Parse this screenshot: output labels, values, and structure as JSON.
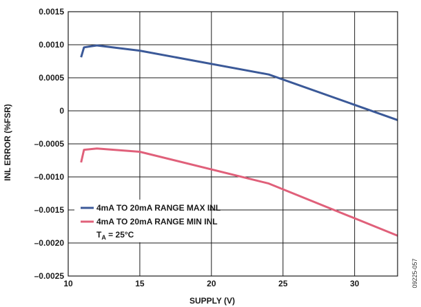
{
  "chart_data": {
    "type": "line",
    "xlabel": "SUPPLY (V)",
    "ylabel": "INL ERROR (%FSR)",
    "xlim": [
      10,
      33
    ],
    "ylim": [
      -0.0025,
      0.0015
    ],
    "x_ticks": [
      10,
      15,
      20,
      25,
      30
    ],
    "x_tick_labels": [
      "10",
      "15",
      "20",
      "25",
      "30"
    ],
    "y_ticks": [
      0.0015,
      0.001,
      0.0005,
      0,
      -0.0005,
      -0.001,
      -0.0015,
      -0.002,
      -0.0025
    ],
    "y_tick_labels": [
      "0.0015",
      "0.0010",
      "0.0005",
      "0",
      "–0.0005",
      "–0.0010",
      "–0.0015",
      "–0.0020",
      "–0.0025"
    ],
    "grid": true,
    "legend_position": "bottom-left",
    "series": [
      {
        "name": "4mA TO 20mA RANGE MAX INL",
        "color": "#3b5998",
        "x": [
          10.9,
          11.1,
          12,
          15,
          24,
          33
        ],
        "y": [
          0.00081,
          0.00096,
          0.00099,
          0.00091,
          0.00055,
          -0.00014
        ]
      },
      {
        "name": "4mA TO 20mA RANGE MIN INL",
        "color": "#e0607a",
        "x": [
          10.9,
          11.1,
          12,
          15,
          24,
          33
        ],
        "y": [
          -0.00078,
          -0.00059,
          -0.00057,
          -0.00062,
          -0.0011,
          -0.00189
        ]
      }
    ],
    "annotation": {
      "prefix": "T",
      "subscript": "A",
      "suffix": " = 25°C"
    },
    "figure_id": "09225-057"
  }
}
